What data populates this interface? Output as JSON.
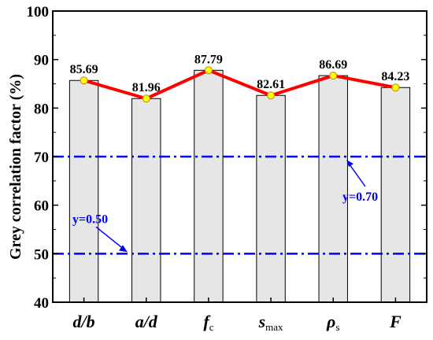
{
  "chart_data": {
    "type": "bar",
    "categories": [
      {
        "main": "d/b",
        "sub": ""
      },
      {
        "main": "a/d",
        "sub": ""
      },
      {
        "main": "f",
        "sub": "c"
      },
      {
        "main": "s",
        "sub": "max"
      },
      {
        "main": "ρ",
        "sub": "s"
      },
      {
        "main": "F",
        "sub": ""
      }
    ],
    "values": [
      85.69,
      81.96,
      87.79,
      82.61,
      86.69,
      84.23
    ],
    "value_labels": [
      "85.69",
      "81.96",
      "87.79",
      "82.61",
      "86.69",
      "84.23"
    ],
    "ylabel": "Grey correlation factor (%)",
    "ylim": [
      40,
      100
    ],
    "yticks": [
      40,
      50,
      60,
      70,
      80,
      90,
      100
    ],
    "grid": false,
    "overlay_line": true,
    "reference_lines": [
      {
        "value": 50,
        "label": "y=0.50"
      },
      {
        "value": 70,
        "label": "y=0.70"
      }
    ],
    "colors": {
      "bar_fill": "#e6e6e6",
      "bar_stroke": "#000000",
      "line": "#ff0000",
      "marker_fill": "#ffff00",
      "marker_stroke": "#b8860b",
      "reference": "#0000ff"
    }
  }
}
